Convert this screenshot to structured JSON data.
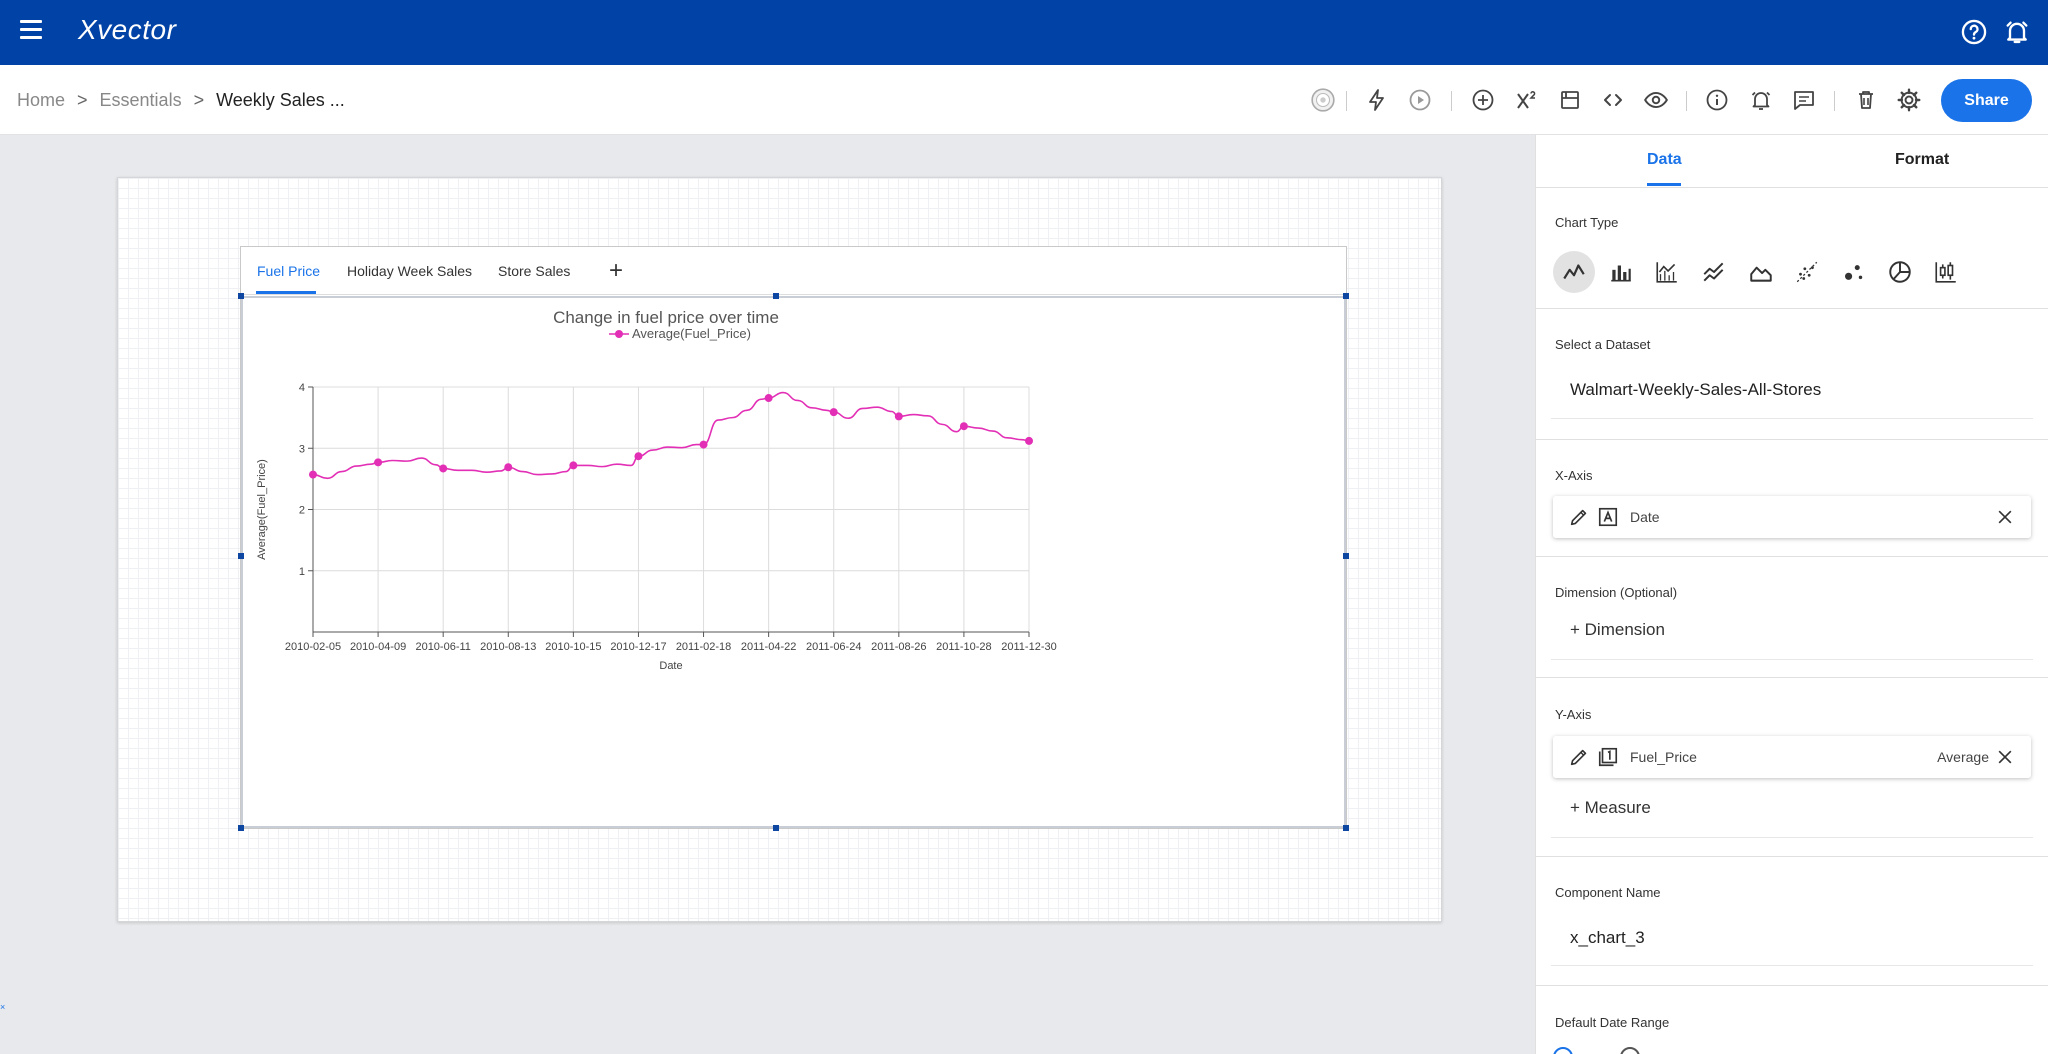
{
  "app": {
    "logo_text": "Xvector",
    "brand_color": "#0042a6",
    "accent_color": "#1a73e8"
  },
  "appbar": {
    "icons": [
      "help-icon",
      "notification-bell-icon"
    ]
  },
  "breadcrumb": {
    "items": [
      "Home",
      "Essentials",
      "Weekly Sales ..."
    ],
    "separator": ">"
  },
  "toolbar": {
    "icons": [
      "globe-icon",
      "bolt-icon",
      "play-icon",
      "add-circle-icon",
      "formula-icon",
      "save-icon",
      "code-icon",
      "eye-icon",
      "info-icon",
      "alert-icon",
      "comment-icon",
      "delete-icon",
      "settings-icon"
    ],
    "share_label": "Share"
  },
  "widget": {
    "tabs": [
      "Fuel Price",
      "Holiday Week Sales",
      "Store Sales"
    ],
    "active_tab": "Fuel Price",
    "add_tab": "+"
  },
  "chart_data": {
    "type": "line",
    "title": "Change in fuel price over time",
    "xlabel": "Date",
    "ylabel": "Average(Fuel_Price)",
    "legend": {
      "position": "top-center",
      "entries": [
        "Average(Fuel_Price)"
      ]
    },
    "series_color": "#e22fb5",
    "ylim": [
      0,
      4
    ],
    "yticks": [
      1,
      2,
      3,
      4
    ],
    "grid": true,
    "x_ticks": [
      "2010-02-05",
      "2010-04-09",
      "2010-06-11",
      "2010-08-13",
      "2010-10-15",
      "2010-12-17",
      "2011-02-18",
      "2011-04-22",
      "2011-06-24",
      "2011-08-26",
      "2011-10-28",
      "2011-12-30"
    ],
    "series": [
      {
        "name": "Average(Fuel_Price)",
        "x": [
          "2010-02-05",
          "2010-02-19",
          "2010-03-05",
          "2010-03-19",
          "2010-04-02",
          "2010-04-09",
          "2010-04-23",
          "2010-05-07",
          "2010-05-21",
          "2010-06-04",
          "2010-06-11",
          "2010-06-25",
          "2010-07-09",
          "2010-07-23",
          "2010-08-06",
          "2010-08-13",
          "2010-08-27",
          "2010-09-10",
          "2010-09-24",
          "2010-10-08",
          "2010-10-15",
          "2010-10-29",
          "2010-11-12",
          "2010-11-26",
          "2010-12-10",
          "2010-12-17",
          "2010-12-31",
          "2011-01-14",
          "2011-01-28",
          "2011-02-11",
          "2011-02-18",
          "2011-03-04",
          "2011-03-18",
          "2011-04-01",
          "2011-04-15",
          "2011-04-22",
          "2011-05-06",
          "2011-05-20",
          "2011-06-03",
          "2011-06-17",
          "2011-06-24",
          "2011-07-08",
          "2011-07-22",
          "2011-08-05",
          "2011-08-19",
          "2011-08-26",
          "2011-09-09",
          "2011-09-23",
          "2011-10-07",
          "2011-10-21",
          "2011-10-28",
          "2011-11-11",
          "2011-11-25",
          "2011-12-09",
          "2011-12-23",
          "2011-12-30"
        ],
        "values": [
          2.57,
          2.51,
          2.62,
          2.71,
          2.74,
          2.77,
          2.8,
          2.79,
          2.84,
          2.73,
          2.67,
          2.64,
          2.64,
          2.61,
          2.63,
          2.69,
          2.62,
          2.57,
          2.58,
          2.62,
          2.72,
          2.72,
          2.7,
          2.74,
          2.72,
          2.87,
          2.97,
          3.02,
          3.01,
          3.06,
          3.06,
          3.46,
          3.5,
          3.62,
          3.8,
          3.82,
          3.91,
          3.78,
          3.66,
          3.62,
          3.59,
          3.49,
          3.65,
          3.67,
          3.6,
          3.52,
          3.55,
          3.53,
          3.39,
          3.27,
          3.36,
          3.33,
          3.28,
          3.17,
          3.14,
          3.12
        ],
        "markers": [
          0,
          5,
          10,
          15,
          20,
          25,
          30,
          35,
          40,
          45,
          50,
          55
        ]
      }
    ]
  },
  "panel": {
    "tabs": [
      "Data",
      "Format"
    ],
    "active_tab": "Data",
    "chart_type_label": "Chart Type",
    "chart_type_icons": [
      "line-chart-icon",
      "bar-chart-icon",
      "combo-chart-icon",
      "multi-line-chart-icon",
      "area-chart-icon",
      "scatter-line-chart-icon",
      "bubble-chart-icon",
      "pie-chart-icon",
      "candlestick-chart-icon"
    ],
    "dataset_label": "Select a Dataset",
    "dataset_value": "Walmart-Weekly-Sales-All-Stores",
    "xaxis_label": "X-Axis",
    "xaxis_field": "Date",
    "dimension_label": "Dimension (Optional)",
    "add_dimension": "+ Dimension",
    "yaxis_label": "Y-Axis",
    "yaxis_field": "Fuel_Price",
    "yaxis_agg": "Average",
    "add_measure": "+ Measure",
    "component_name_label": "Component Name",
    "component_name_value": "x_chart_3",
    "date_range_label": "Default Date Range"
  }
}
